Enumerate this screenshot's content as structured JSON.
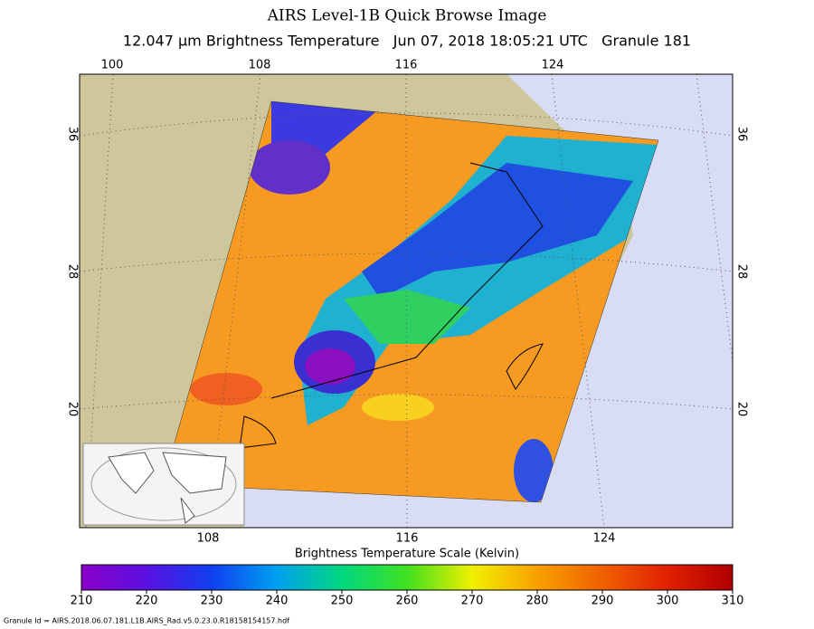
{
  "header": {
    "title": "AIRS Level-1B Quick Browse Image",
    "subtitle": "12.047 μm Brightness Temperature   Jun 07, 2018 18:05:21 UTC   Granule 181"
  },
  "map": {
    "lon_labels_top": [
      100,
      108,
      116,
      124
    ],
    "lon_labels_bottom": [
      108,
      116,
      124
    ],
    "lat_labels_left": [
      36,
      28,
      20
    ],
    "lat_labels_right": [
      36,
      28,
      20
    ]
  },
  "colorbar": {
    "title": "Brightness Temperature Scale (Kelvin)",
    "range": [
      210,
      310
    ],
    "ticks": [
      210,
      220,
      230,
      240,
      250,
      260,
      270,
      280,
      290,
      300,
      310
    ],
    "colors": [
      "#8a00c8",
      "#5a10e0",
      "#1040f0",
      "#00a0f0",
      "#00d880",
      "#40e020",
      "#f0f000",
      "#f8a000",
      "#f06000",
      "#e02000",
      "#b00000"
    ]
  },
  "footer": {
    "granule_id": "Granule Id = AIRS.2018.06.07.181.L1B.AIRS_Rad.v5.0.23.0.R18158154157.hdf"
  }
}
